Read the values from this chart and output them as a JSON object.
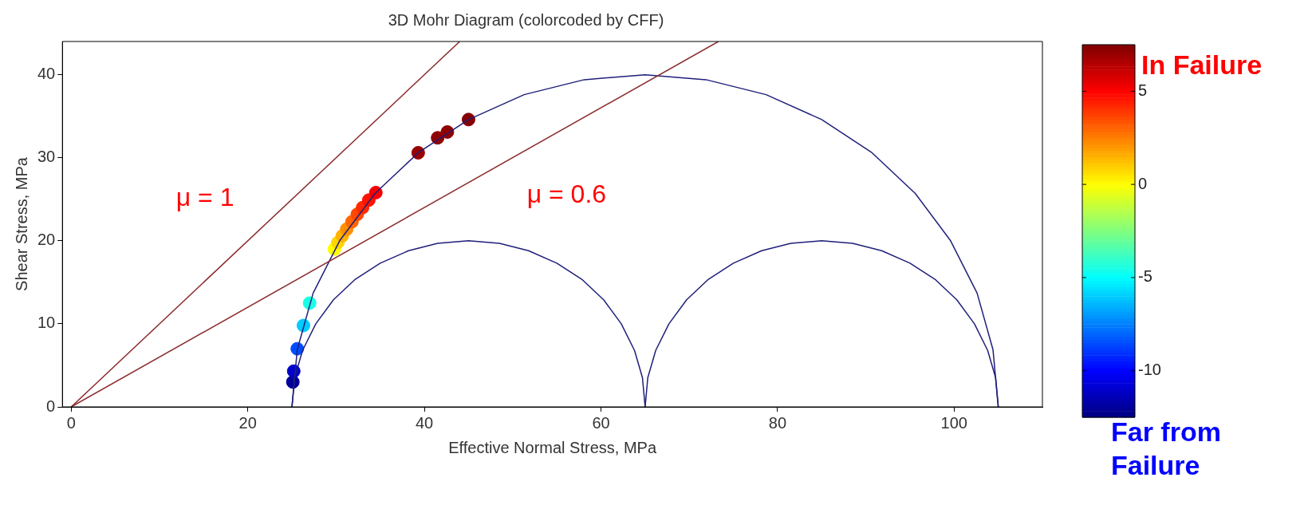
{
  "chart_data": {
    "type": "scatter",
    "title": "3D Mohr Diagram (colorcoded by CFF)",
    "xlabel": "Effective Normal Stress, MPa",
    "ylabel": "Shear Stress, MPa",
    "xlim": [
      -1,
      110
    ],
    "xticks": [
      0,
      20,
      40,
      60,
      80,
      100
    ],
    "ylim": [
      0,
      44
    ],
    "yticks": [
      0,
      10,
      20,
      30,
      40
    ],
    "grid": false,
    "legend": false,
    "marker": "circle",
    "clim": [
      -12.5,
      7.5
    ],
    "cticks": [
      {
        "value": 5,
        "label": "5"
      },
      {
        "value": 0,
        "label": "0"
      },
      {
        "value": -5,
        "label": "-5"
      },
      {
        "value": -10,
        "label": "-10"
      }
    ],
    "series": [
      {
        "type": "line",
        "name": "μ = 1",
        "marker": "none",
        "color": "#8b2b2b",
        "x": [
          0,
          44
        ],
        "values": [
          0,
          44
        ]
      },
      {
        "type": "line",
        "name": "μ = 0.6",
        "marker": "none",
        "color": "#8b2b2b",
        "x": [
          0,
          73.3
        ],
        "values": [
          0,
          44
        ]
      },
      {
        "type": "line",
        "marker": "none",
        "color": "#1f1f7a",
        "x": [
          25,
          25.3,
          26.2,
          27.7,
          29.7,
          32.1,
          35,
          38.2,
          41.5,
          45,
          48.5,
          51.8,
          55,
          57.9,
          60.3,
          62.3,
          63.8,
          64.7,
          65
        ],
        "values": [
          0,
          3.5,
          6.8,
          10,
          12.9,
          15.3,
          17.3,
          18.8,
          19.7,
          20,
          19.7,
          18.8,
          17.3,
          15.3,
          12.9,
          10,
          6.8,
          3.5,
          0
        ]
      },
      {
        "type": "line",
        "marker": "none",
        "color": "#1f1f7a",
        "x": [
          65,
          65.3,
          66.2,
          67.7,
          69.7,
          72.1,
          75,
          78.2,
          81.5,
          85,
          88.5,
          91.8,
          95,
          97.9,
          100.3,
          102.3,
          103.8,
          104.7,
          105
        ],
        "values": [
          0,
          3.5,
          6.8,
          10,
          12.9,
          15.3,
          17.3,
          18.8,
          19.7,
          20,
          19.7,
          18.8,
          17.3,
          15.3,
          12.9,
          10,
          6.8,
          3.5,
          0
        ]
      },
      {
        "type": "line",
        "marker": "none",
        "color": "#1f1f7a",
        "x": [
          25,
          25.6,
          27.4,
          30.4,
          34.4,
          39.3,
          45,
          51.3,
          58.1,
          65,
          71.9,
          78.7,
          85,
          90.7,
          95.6,
          99.6,
          102.6,
          104.4,
          105
        ],
        "values": [
          0,
          6.9,
          13.7,
          20,
          25.7,
          30.6,
          34.6,
          37.6,
          39.4,
          40,
          39.4,
          37.6,
          34.6,
          30.6,
          25.7,
          20,
          13.7,
          6.9,
          0
        ]
      },
      {
        "x": [
          25.1,
          25.2,
          25.6,
          26.3,
          27,
          29.8,
          30.2,
          30.7,
          31.2,
          31.8,
          32.4,
          33,
          33.7,
          34.5,
          39.3,
          41.5,
          42.6,
          45
        ],
        "values": [
          3,
          4.3,
          7,
          9.8,
          12.5,
          19,
          19.8,
          20.6,
          21.4,
          22.3,
          23.2,
          24,
          24.9,
          25.8,
          30.6,
          32.4,
          33.1,
          34.6
        ],
        "cvalues": [
          -12,
          -11,
          -8.5,
          -6,
          -4.5,
          0,
          0.8,
          1.5,
          2.2,
          3,
          3.6,
          4.2,
          4.6,
          5.2,
          7,
          7.2,
          7.2,
          7.4
        ],
        "colors": [
          "#000099",
          "#0000cc",
          "#004dff",
          "#00ccff",
          "#1affe6",
          "#ffff00",
          "#ffd600",
          "#ffb300",
          "#ff8f00",
          "#ff6600",
          "#ff4700",
          "#ff2900",
          "#ff1400",
          "#f50000",
          "#990000",
          "#8f0000",
          "#8f0000",
          "#850000"
        ]
      }
    ],
    "annotations": [
      "In Failure",
      "Far from Failure"
    ]
  }
}
